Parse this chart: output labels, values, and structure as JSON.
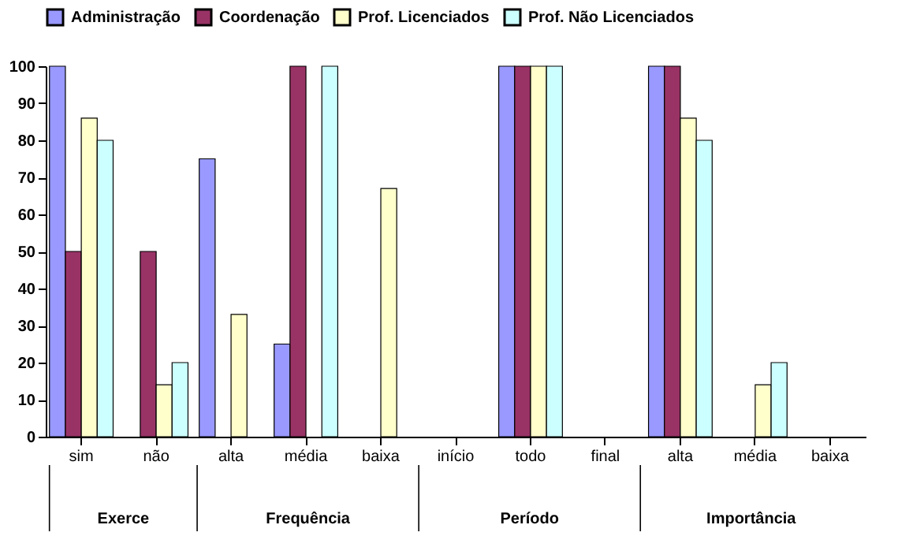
{
  "chart_data": {
    "type": "bar",
    "categories": [
      "sim",
      "não",
      "alta",
      "média",
      "baixa",
      "início",
      "todo",
      "final",
      "alta",
      "média",
      "baixa"
    ],
    "series": [
      {
        "name": "Administração",
        "color": "#9999ff",
        "values": [
          100,
          0,
          75,
          25,
          0,
          0,
          100,
          0,
          100,
          0,
          0
        ]
      },
      {
        "name": "Coordenação",
        "color": "#993366",
        "values": [
          50,
          50,
          0,
          100,
          0,
          0,
          100,
          0,
          100,
          0,
          0
        ]
      },
      {
        "name": "Prof. Licenciados",
        "color": "#ffffcc",
        "values": [
          86,
          14,
          33,
          0,
          67,
          0,
          100,
          0,
          86,
          14,
          0
        ]
      },
      {
        "name": "Prof. Não Licenciados",
        "color": "#ccffff",
        "values": [
          80,
          20,
          0,
          100,
          0,
          0,
          100,
          0,
          80,
          20,
          0
        ]
      }
    ],
    "annotations": [
      "Exerce",
      "Frequência",
      "Período",
      "Importância"
    ],
    "ylim": [
      0,
      100
    ],
    "yticks": [
      0,
      10,
      20,
      30,
      40,
      50,
      60,
      70,
      80,
      90,
      100
    ],
    "grid": false,
    "legend": "top"
  }
}
